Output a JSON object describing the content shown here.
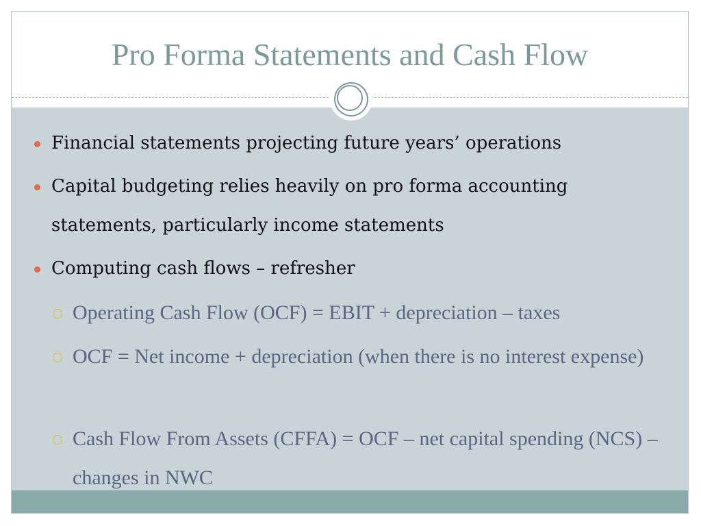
{
  "title": "Pro Forma Statements and Cash Flow",
  "colors": {
    "title": "#7a9a96",
    "body_bg": "#c8d4d8",
    "footer_bg": "#8aaaaa",
    "bullet": "#e06a4a",
    "sub_bullet": "#d6c22a",
    "sub_text": "#5a6680"
  },
  "bullets": [
    {
      "text": "Financial statements projecting future years’ operations"
    },
    {
      "text": "Capital budgeting relies heavily on pro forma accounting statements, particularly income statements"
    },
    {
      "text": "Computing cash flows – refresher"
    }
  ],
  "sub_bullets": [
    {
      "text": "Operating Cash Flow (OCF) = EBIT + depreciation – taxes"
    },
    {
      "text": "OCF = Net income + depreciation (when there is no interest expense)"
    },
    {
      "text": "Cash Flow From Assets (CFFA) = OCF – net capital spending (NCS) – changes in NWC"
    }
  ]
}
